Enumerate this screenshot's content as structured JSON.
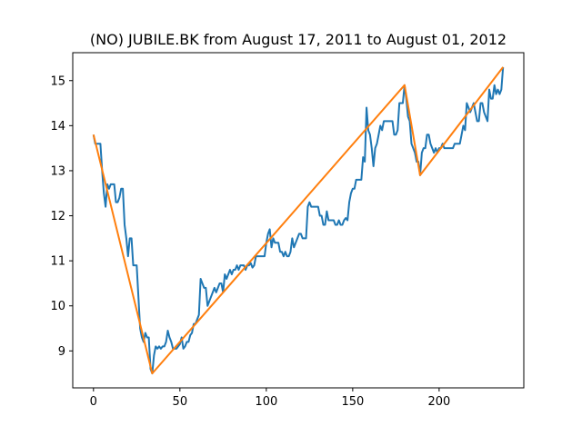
{
  "chart_data": {
    "type": "line",
    "title": "(NO) JUBILE.BK from August 17, 2011 to August 01, 2012",
    "xlabel": "",
    "ylabel": "",
    "xlim": [
      -12,
      249
    ],
    "ylim": [
      8.18,
      15.62
    ],
    "xticks": [
      0,
      50,
      100,
      150,
      200
    ],
    "yticks": [
      9,
      10,
      11,
      12,
      13,
      14,
      15
    ],
    "grid": false,
    "series": [
      {
        "color": "#1f77b4",
        "points": [
          [
            0,
            13.8
          ],
          [
            1,
            13.6
          ],
          [
            3,
            13.6
          ],
          [
            4,
            13.6
          ],
          [
            5,
            13.0
          ],
          [
            6,
            12.5
          ],
          [
            7,
            12.2
          ],
          [
            8,
            12.7
          ],
          [
            9,
            12.6
          ],
          [
            10,
            12.7
          ],
          [
            12,
            12.7
          ],
          [
            13,
            12.3
          ],
          [
            14,
            12.3
          ],
          [
            15,
            12.4
          ],
          [
            16,
            12.6
          ],
          [
            17,
            12.6
          ],
          [
            18,
            11.8
          ],
          [
            19,
            11.5
          ],
          [
            20,
            11.1
          ],
          [
            21,
            11.5
          ],
          [
            22,
            11.5
          ],
          [
            23,
            10.9
          ],
          [
            24,
            10.9
          ],
          [
            25,
            10.9
          ],
          [
            26,
            10.2
          ],
          [
            27,
            9.5
          ],
          [
            28,
            9.3
          ],
          [
            29,
            9.2
          ],
          [
            30,
            9.4
          ],
          [
            31,
            9.3
          ],
          [
            32,
            9.3
          ],
          [
            33,
            8.6
          ],
          [
            34,
            8.5
          ],
          [
            35,
            8.9
          ],
          [
            36,
            9.1
          ],
          [
            37,
            9.05
          ],
          [
            38,
            9.1
          ],
          [
            39,
            9.05
          ],
          [
            40,
            9.1
          ],
          [
            41,
            9.1
          ],
          [
            42,
            9.2
          ],
          [
            43,
            9.45
          ],
          [
            44,
            9.3
          ],
          [
            45,
            9.2
          ],
          [
            46,
            9.05
          ],
          [
            47,
            9.05
          ],
          [
            48,
            9.05
          ],
          [
            49,
            9.1
          ],
          [
            50,
            9.15
          ],
          [
            51,
            9.3
          ],
          [
            52,
            9.05
          ],
          [
            53,
            9.1
          ],
          [
            54,
            9.2
          ],
          [
            55,
            9.2
          ],
          [
            56,
            9.35
          ],
          [
            57,
            9.4
          ],
          [
            58,
            9.6
          ],
          [
            59,
            9.6
          ],
          [
            60,
            9.7
          ],
          [
            61,
            9.8
          ],
          [
            62,
            10.6
          ],
          [
            63,
            10.5
          ],
          [
            64,
            10.4
          ],
          [
            65,
            10.4
          ],
          [
            66,
            10.0
          ],
          [
            67,
            10.1
          ],
          [
            68,
            10.2
          ],
          [
            69,
            10.3
          ],
          [
            70,
            10.4
          ],
          [
            71,
            10.3
          ],
          [
            72,
            10.4
          ],
          [
            73,
            10.5
          ],
          [
            74,
            10.5
          ],
          [
            75,
            10.3
          ],
          [
            76,
            10.7
          ],
          [
            77,
            10.6
          ],
          [
            78,
            10.7
          ],
          [
            79,
            10.8
          ],
          [
            80,
            10.7
          ],
          [
            81,
            10.8
          ],
          [
            82,
            10.8
          ],
          [
            83,
            10.9
          ],
          [
            84,
            10.8
          ],
          [
            85,
            10.9
          ],
          [
            86,
            10.9
          ],
          [
            87,
            10.9
          ],
          [
            88,
            10.8
          ],
          [
            89,
            10.9
          ],
          [
            90,
            10.9
          ],
          [
            91,
            10.95
          ],
          [
            92,
            10.85
          ],
          [
            93,
            10.9
          ],
          [
            94,
            11.1
          ],
          [
            95,
            11.1
          ],
          [
            96,
            11.1
          ],
          [
            97,
            11.1
          ],
          [
            98,
            11.1
          ],
          [
            99,
            11.1
          ],
          [
            100,
            11.4
          ],
          [
            101,
            11.6
          ],
          [
            102,
            11.7
          ],
          [
            103,
            11.3
          ],
          [
            104,
            11.5
          ],
          [
            105,
            11.4
          ],
          [
            106,
            11.4
          ],
          [
            107,
            11.4
          ],
          [
            108,
            11.2
          ],
          [
            109,
            11.2
          ],
          [
            110,
            11.1
          ],
          [
            111,
            11.2
          ],
          [
            112,
            11.1
          ],
          [
            113,
            11.1
          ],
          [
            114,
            11.2
          ],
          [
            115,
            11.5
          ],
          [
            116,
            11.3
          ],
          [
            117,
            11.4
          ],
          [
            118,
            11.5
          ],
          [
            119,
            11.6
          ],
          [
            120,
            11.6
          ],
          [
            121,
            11.5
          ],
          [
            122,
            11.5
          ],
          [
            123,
            11.5
          ],
          [
            124,
            12.2
          ],
          [
            125,
            12.3
          ],
          [
            126,
            12.2
          ],
          [
            127,
            12.2
          ],
          [
            128,
            12.2
          ],
          [
            129,
            12.2
          ],
          [
            130,
            12.2
          ],
          [
            131,
            12.0
          ],
          [
            132,
            12.0
          ],
          [
            133,
            11.8
          ],
          [
            134,
            11.8
          ],
          [
            135,
            12.1
          ],
          [
            136,
            11.9
          ],
          [
            137,
            11.9
          ],
          [
            138,
            11.9
          ],
          [
            139,
            11.9
          ],
          [
            140,
            11.8
          ],
          [
            141,
            11.8
          ],
          [
            142,
            11.9
          ],
          [
            143,
            11.8
          ],
          [
            144,
            11.8
          ],
          [
            145,
            11.9
          ],
          [
            146,
            11.95
          ],
          [
            147,
            11.9
          ],
          [
            148,
            12.3
          ],
          [
            149,
            12.5
          ],
          [
            150,
            12.6
          ],
          [
            151,
            12.6
          ],
          [
            152,
            12.8
          ],
          [
            153,
            12.8
          ],
          [
            154,
            12.8
          ],
          [
            155,
            12.8
          ],
          [
            156,
            13.3
          ],
          [
            157,
            13.2
          ],
          [
            158,
            14.4
          ],
          [
            159,
            13.9
          ],
          [
            160,
            13.8
          ],
          [
            161,
            13.5
          ],
          [
            162,
            13.1
          ],
          [
            163,
            13.5
          ],
          [
            164,
            13.6
          ],
          [
            165,
            13.8
          ],
          [
            166,
            14.0
          ],
          [
            167,
            13.9
          ],
          [
            168,
            14.1
          ],
          [
            169,
            14.1
          ],
          [
            170,
            14.1
          ],
          [
            171,
            14.1
          ],
          [
            172,
            14.1
          ],
          [
            173,
            14.1
          ],
          [
            174,
            13.8
          ],
          [
            175,
            13.8
          ],
          [
            176,
            13.9
          ],
          [
            177,
            14.5
          ],
          [
            178,
            14.5
          ],
          [
            179,
            14.5
          ],
          [
            180,
            14.9
          ],
          [
            181,
            14.6
          ],
          [
            182,
            14.2
          ],
          [
            183,
            14.1
          ],
          [
            184,
            13.6
          ],
          [
            185,
            13.5
          ],
          [
            186,
            13.4
          ],
          [
            187,
            13.2
          ],
          [
            188,
            13.2
          ],
          [
            189,
            12.9
          ],
          [
            190,
            13.4
          ],
          [
            191,
            13.5
          ],
          [
            192,
            13.5
          ],
          [
            193,
            13.8
          ],
          [
            194,
            13.8
          ],
          [
            195,
            13.6
          ],
          [
            196,
            13.5
          ],
          [
            197,
            13.4
          ],
          [
            198,
            13.5
          ],
          [
            199,
            13.4
          ],
          [
            200,
            13.5
          ],
          [
            201,
            13.5
          ],
          [
            202,
            13.6
          ],
          [
            203,
            13.5
          ],
          [
            204,
            13.5
          ],
          [
            205,
            13.5
          ],
          [
            206,
            13.5
          ],
          [
            207,
            13.5
          ],
          [
            208,
            13.5
          ],
          [
            209,
            13.6
          ],
          [
            210,
            13.6
          ],
          [
            211,
            13.6
          ],
          [
            212,
            13.6
          ],
          [
            213,
            13.8
          ],
          [
            214,
            14.0
          ],
          [
            215,
            13.9
          ],
          [
            216,
            14.5
          ],
          [
            217,
            14.4
          ],
          [
            218,
            14.3
          ],
          [
            219,
            14.4
          ],
          [
            220,
            14.5
          ],
          [
            221,
            14.3
          ],
          [
            222,
            14.1
          ],
          [
            223,
            14.1
          ],
          [
            224,
            14.5
          ],
          [
            225,
            14.5
          ],
          [
            226,
            14.3
          ],
          [
            227,
            14.2
          ],
          [
            228,
            14.1
          ],
          [
            229,
            14.8
          ],
          [
            230,
            14.6
          ],
          [
            231,
            14.6
          ],
          [
            232,
            14.9
          ],
          [
            233,
            14.7
          ],
          [
            234,
            14.8
          ],
          [
            235,
            14.7
          ],
          [
            236,
            14.8
          ],
          [
            237,
            15.3
          ]
        ]
      },
      {
        "color": "#ff7f0e",
        "points": [
          [
            0,
            13.8
          ],
          [
            34,
            8.5
          ],
          [
            180,
            14.9
          ],
          [
            189,
            12.9
          ],
          [
            237,
            15.3
          ]
        ]
      }
    ]
  }
}
